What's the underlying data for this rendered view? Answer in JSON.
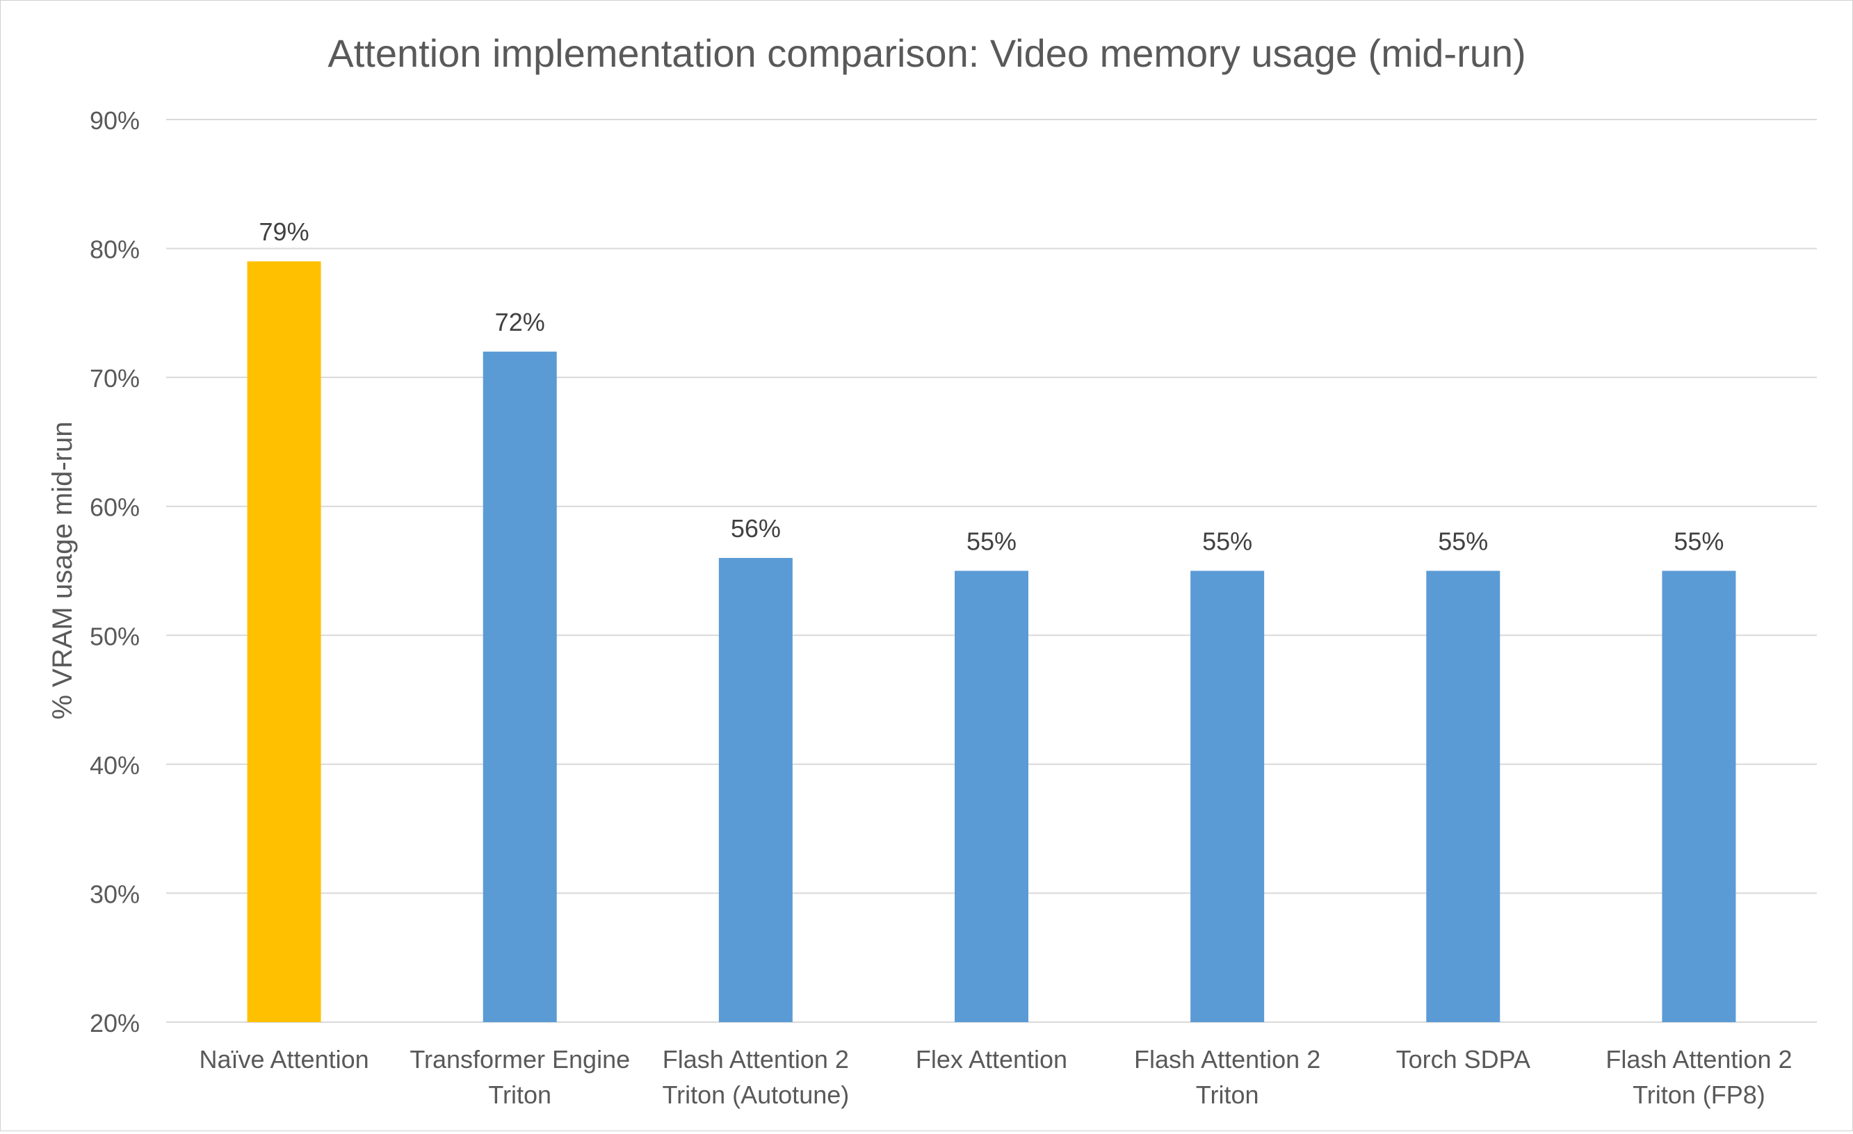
{
  "chart_data": {
    "type": "bar",
    "title": "Attention implementation comparison: Video memory usage (mid-run)",
    "ylabel": "% VRAM usage mid-run",
    "xlabel": "",
    "ylim": [
      0.2,
      0.9
    ],
    "yticks": [
      {
        "value": 0.2,
        "label": "20%"
      },
      {
        "value": 0.3,
        "label": "30%"
      },
      {
        "value": 0.4,
        "label": "40%"
      },
      {
        "value": 0.5,
        "label": "50%"
      },
      {
        "value": 0.6,
        "label": "60%"
      },
      {
        "value": 0.7,
        "label": "70%"
      },
      {
        "value": 0.8,
        "label": "80%"
      },
      {
        "value": 0.9,
        "label": "90%"
      }
    ],
    "grid": true,
    "legend": "none",
    "categories": [
      [
        "Naïve Attention"
      ],
      [
        "Transformer Engine",
        "Triton"
      ],
      [
        "Flash Attention 2",
        "Triton (Autotune)"
      ],
      [
        "Flex Attention"
      ],
      [
        "Flash Attention 2",
        "Triton"
      ],
      [
        "Torch SDPA"
      ],
      [
        "Flash Attention 2",
        "Triton (FP8)"
      ]
    ],
    "values": [
      0.79,
      0.72,
      0.56,
      0.55,
      0.55,
      0.55,
      0.55
    ],
    "data_labels": [
      "79%",
      "72%",
      "56%",
      "55%",
      "55%",
      "55%",
      "55%"
    ],
    "colors": {
      "highlight": "#FFC000",
      "default": "#5B9BD5",
      "grid": "#D9D9D9",
      "text": "#595959",
      "title": "#595959",
      "data_label": "#404040"
    },
    "highlight_index": 0
  }
}
